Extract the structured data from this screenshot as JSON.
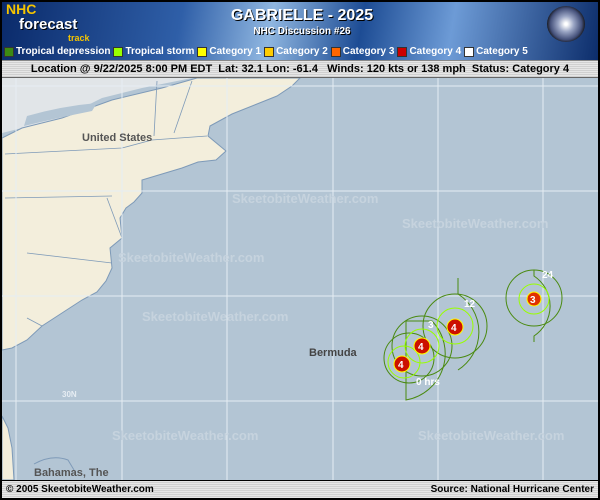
{
  "header": {
    "logo_nhc": "NHC",
    "logo_forecast": "forecast",
    "logo_track": "track",
    "title": "GABRIELLE - 2025",
    "subtitle": "NHC Discussion #26"
  },
  "legend": [
    {
      "label": "Tropical depression",
      "color": "#3d8a12"
    },
    {
      "label": "Tropical storm",
      "color": "#99ff00"
    },
    {
      "label": "Category 1",
      "color": "#ffff00"
    },
    {
      "label": "Category 2",
      "color": "#ffcc00"
    },
    {
      "label": "Category 3",
      "color": "#ff6600"
    },
    {
      "label": "Category 4",
      "color": "#cc0000"
    },
    {
      "label": "Category 5",
      "color": "#ffffff"
    }
  ],
  "status": {
    "text": "Location @ 9/22/2025 8:00 PM EDT  Lat: 32.1 Lon: -61.4   Winds: 120 kts or 138 mph  Status: Category 4"
  },
  "map": {
    "labels": {
      "us": "United States",
      "bermuda": "Bermuda",
      "lat30": "30N",
      "bahamas": "Bahamas, The"
    },
    "watermark": "SkeetobiteWeather.com",
    "track": [
      {
        "hours": "0 hrs",
        "category": "4"
      },
      {
        "hours": "3",
        "category": "4"
      },
      {
        "hours": "12",
        "category": "4"
      },
      {
        "hours": "24",
        "category": "3"
      }
    ],
    "colors": {
      "ocean": "#b3c5d4",
      "land": "#f3eedc",
      "radii": "#4a8a10",
      "ts_radii": "#99ff00",
      "marker": "#cc1100"
    }
  },
  "footer": {
    "copyright": "© 2005 SkeetobiteWeather.com",
    "source": "Source: National Hurricane Center"
  }
}
